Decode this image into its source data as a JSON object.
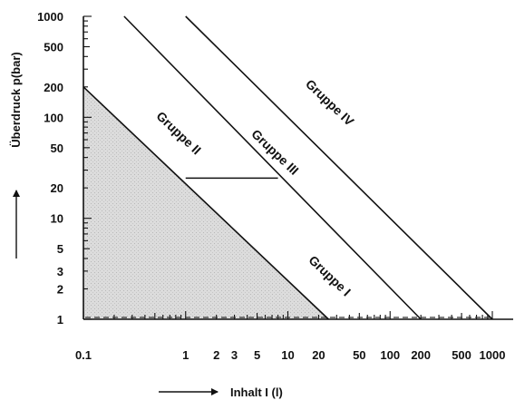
{
  "chart_data": {
    "type": "line",
    "x_scale": "log",
    "y_scale": "log",
    "xlim": [
      0.1,
      1000
    ],
    "ylim": [
      1,
      1000
    ],
    "x_ticks": [
      {
        "value": 0.1,
        "label": "0.1"
      },
      {
        "value": 1,
        "label": "1"
      },
      {
        "value": 2,
        "label": "2"
      },
      {
        "value": 3,
        "label": "3"
      },
      {
        "value": 5,
        "label": "5"
      },
      {
        "value": 10,
        "label": "10"
      },
      {
        "value": 20,
        "label": "20"
      },
      {
        "value": 50,
        "label": "50"
      },
      {
        "value": 100,
        "label": "100"
      },
      {
        "value": 200,
        "label": "200"
      },
      {
        "value": 500,
        "label": "500"
      },
      {
        "value": 1000,
        "label": "1000"
      }
    ],
    "y_ticks": [
      {
        "value": 1,
        "label": "1"
      },
      {
        "value": 2,
        "label": "2"
      },
      {
        "value": 3,
        "label": "3"
      },
      {
        "value": 5,
        "label": "5"
      },
      {
        "value": 10,
        "label": "10"
      },
      {
        "value": 20,
        "label": "20"
      },
      {
        "value": 50,
        "label": "50"
      },
      {
        "value": 100,
        "label": "100"
      },
      {
        "value": 200,
        "label": "200"
      },
      {
        "value": 500,
        "label": "500"
      },
      {
        "value": 1000,
        "label": "1000"
      }
    ],
    "xlabel": "Inhalt  I (l)",
    "ylabel": "Überdruck p(bar)",
    "series": [
      {
        "name": "Gruppe I",
        "x": [
          0.1,
          25
        ],
        "y": [
          200,
          1
        ]
      },
      {
        "name": "Gruppe III",
        "x": [
          0.25,
          200
        ],
        "y": [
          1000,
          1
        ]
      },
      {
        "name": "Gruppe IV",
        "x": [
          1,
          1000
        ],
        "y": [
          1000,
          1
        ]
      }
    ],
    "segments": [
      {
        "x": [
          1,
          8
        ],
        "y": [
          25,
          25
        ]
      }
    ],
    "reference_line": {
      "y": 1,
      "style": "dashed"
    },
    "shaded_region": {
      "x": [
        0.1,
        0.1,
        25
      ],
      "y": [
        200,
        1,
        1
      ]
    },
    "annotations": [
      {
        "text": "Gruppe II",
        "x": 0.8,
        "y": 65
      },
      {
        "text": "Gruppe III",
        "x": 7,
        "y": 42
      },
      {
        "text": "Gruppe IV",
        "x": 24,
        "y": 130
      },
      {
        "text": "Gruppe I",
        "x": 24,
        "y": 2.5
      }
    ]
  }
}
